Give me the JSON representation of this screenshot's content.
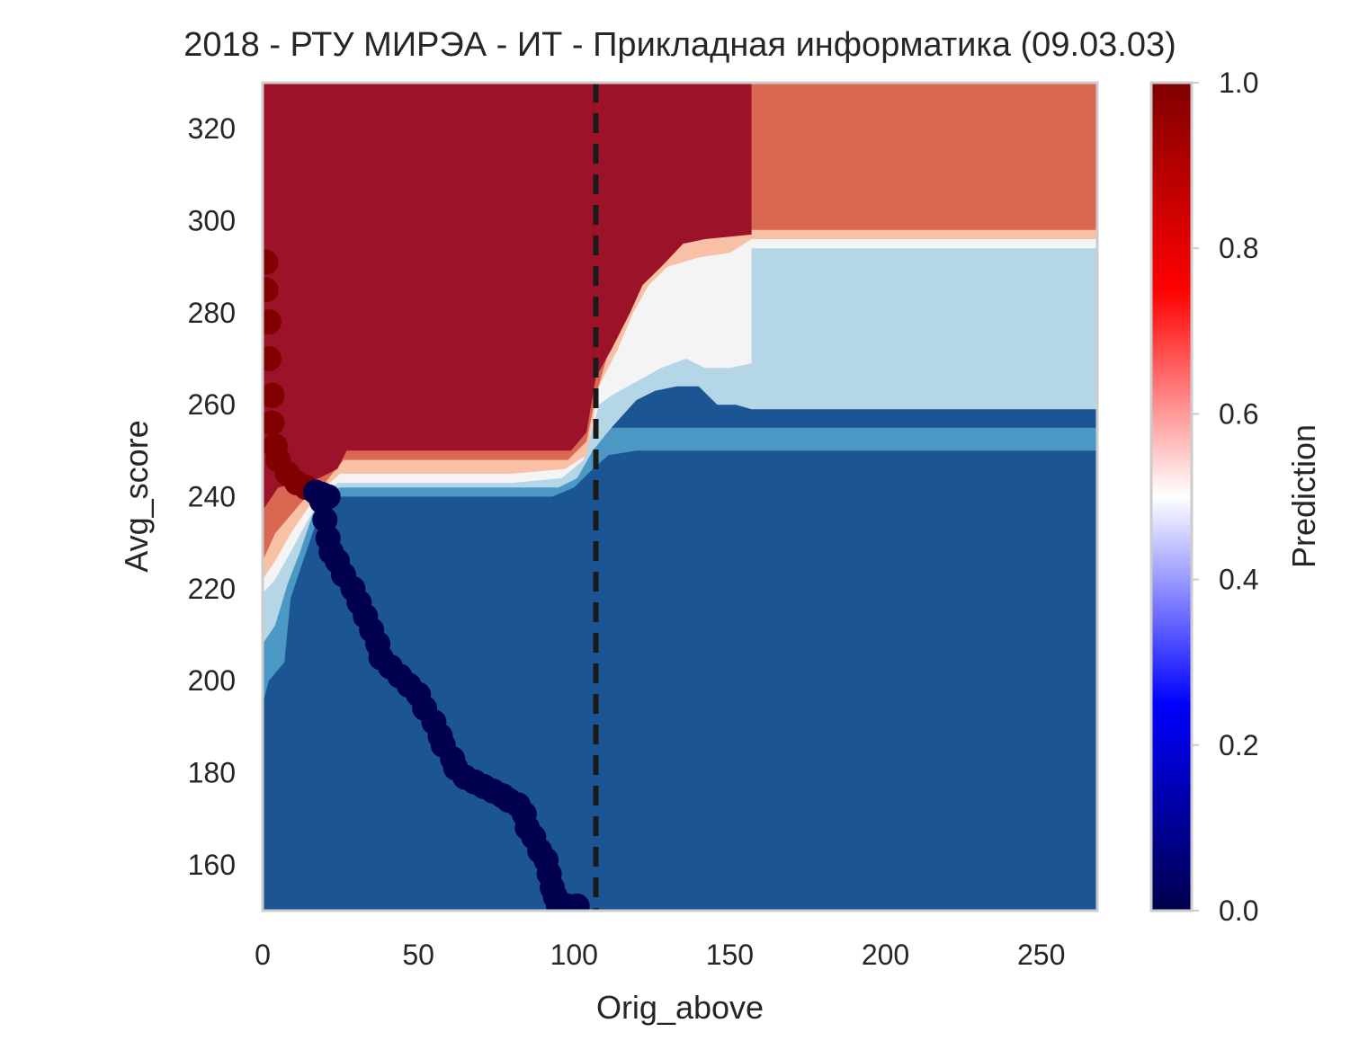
{
  "chart_data": {
    "type": "heatmap",
    "subtype": "filled-contour",
    "title": "2018 - РТУ МИРЭА - ИТ - Прикладная информатика (09.03.03)",
    "xlabel": "Orig_above",
    "ylabel": "Avg_score",
    "colorbar_label": "Prediction",
    "colormap": "seismic",
    "contour_palette": "RdBu_r",
    "xlim": [
      0,
      268
    ],
    "ylim": [
      150,
      330
    ],
    "clim": [
      0,
      1
    ],
    "x_ticks": [
      0,
      50,
      100,
      150,
      200,
      250
    ],
    "x_tick_labels": [
      "0",
      "50",
      "100",
      "150",
      "200",
      "250"
    ],
    "y_ticks": [
      160,
      180,
      200,
      220,
      240,
      260,
      280,
      300,
      320
    ],
    "y_tick_labels": [
      "160",
      "180",
      "200",
      "220",
      "240",
      "260",
      "280",
      "300",
      "320"
    ],
    "colorbar_ticks": [
      0.0,
      0.2,
      0.4,
      0.6,
      0.8,
      1.0
    ],
    "colorbar_tick_labels": [
      "0.0",
      "0.2",
      "0.4",
      "0.6",
      "0.8",
      "1.0"
    ],
    "threshold_line_x": 107,
    "grid": false,
    "contour_levels": [
      {
        "prediction": 0.9,
        "color": "#9b1229"
      },
      {
        "prediction": 0.78,
        "color": "#d96752"
      },
      {
        "prediction": 0.62,
        "color": "#f8c1a6"
      },
      {
        "prediction": 0.5,
        "color": "#f5f4f4"
      },
      {
        "prediction": 0.38,
        "color": "#b5d6e7"
      },
      {
        "prediction": 0.22,
        "color": "#4b98c5"
      },
      {
        "prediction": 0.1,
        "color": "#1c5593"
      }
    ],
    "regions": {
      "top_left_high": {
        "prediction": 0.9,
        "x": [
          0,
          157
        ],
        "y": [
          248,
          330
        ]
      },
      "top_right": {
        "prediction": 0.78,
        "x": [
          157,
          268
        ],
        "y": [
          298,
          330
        ]
      },
      "mid_right": {
        "prediction": 0.38,
        "x": [
          157,
          268
        ],
        "y": [
          260,
          294
        ]
      },
      "lower_right": {
        "prediction": 0.22,
        "x": [
          157,
          268
        ],
        "y": [
          248,
          260
        ]
      },
      "bottom": {
        "prediction": 0.1,
        "x": [
          0,
          268
        ],
        "y": [
          150,
          248
        ]
      }
    },
    "series": [
      {
        "name": "",
        "marker_color": "#00004e",
        "points": [
          [
            1,
            291
          ],
          [
            1,
            285
          ],
          [
            2,
            278
          ],
          [
            2,
            270
          ],
          [
            3,
            262
          ],
          [
            3,
            256
          ],
          [
            4,
            251
          ],
          [
            5,
            248
          ],
          [
            8,
            245
          ],
          [
            11,
            243
          ],
          [
            14,
            242
          ],
          [
            17,
            241
          ],
          [
            19,
            240.5
          ],
          [
            21,
            240
          ],
          [
            19,
            239
          ],
          [
            20,
            235
          ],
          [
            21,
            231
          ],
          [
            22,
            228
          ],
          [
            24,
            226
          ],
          [
            26,
            223
          ],
          [
            29,
            220
          ],
          [
            31,
            217
          ],
          [
            33,
            214
          ],
          [
            35,
            211
          ],
          [
            37,
            208
          ],
          [
            38,
            205
          ],
          [
            41,
            203
          ],
          [
            44,
            201
          ],
          [
            47,
            199
          ],
          [
            50,
            197
          ],
          [
            52,
            194
          ],
          [
            55,
            191
          ],
          [
            57,
            188
          ],
          [
            58,
            186
          ],
          [
            61,
            183
          ],
          [
            62,
            181
          ],
          [
            65,
            179
          ],
          [
            68,
            178
          ],
          [
            71,
            177
          ],
          [
            74,
            176
          ],
          [
            77,
            175
          ],
          [
            79,
            174
          ],
          [
            82,
            173
          ],
          [
            84,
            171
          ],
          [
            85,
            168
          ],
          [
            87,
            166
          ],
          [
            89,
            163
          ],
          [
            91,
            161
          ],
          [
            92,
            158
          ],
          [
            93,
            155
          ],
          [
            94,
            153
          ],
          [
            95,
            151
          ],
          [
            98,
            151
          ],
          [
            101,
            151
          ]
        ]
      }
    ]
  }
}
